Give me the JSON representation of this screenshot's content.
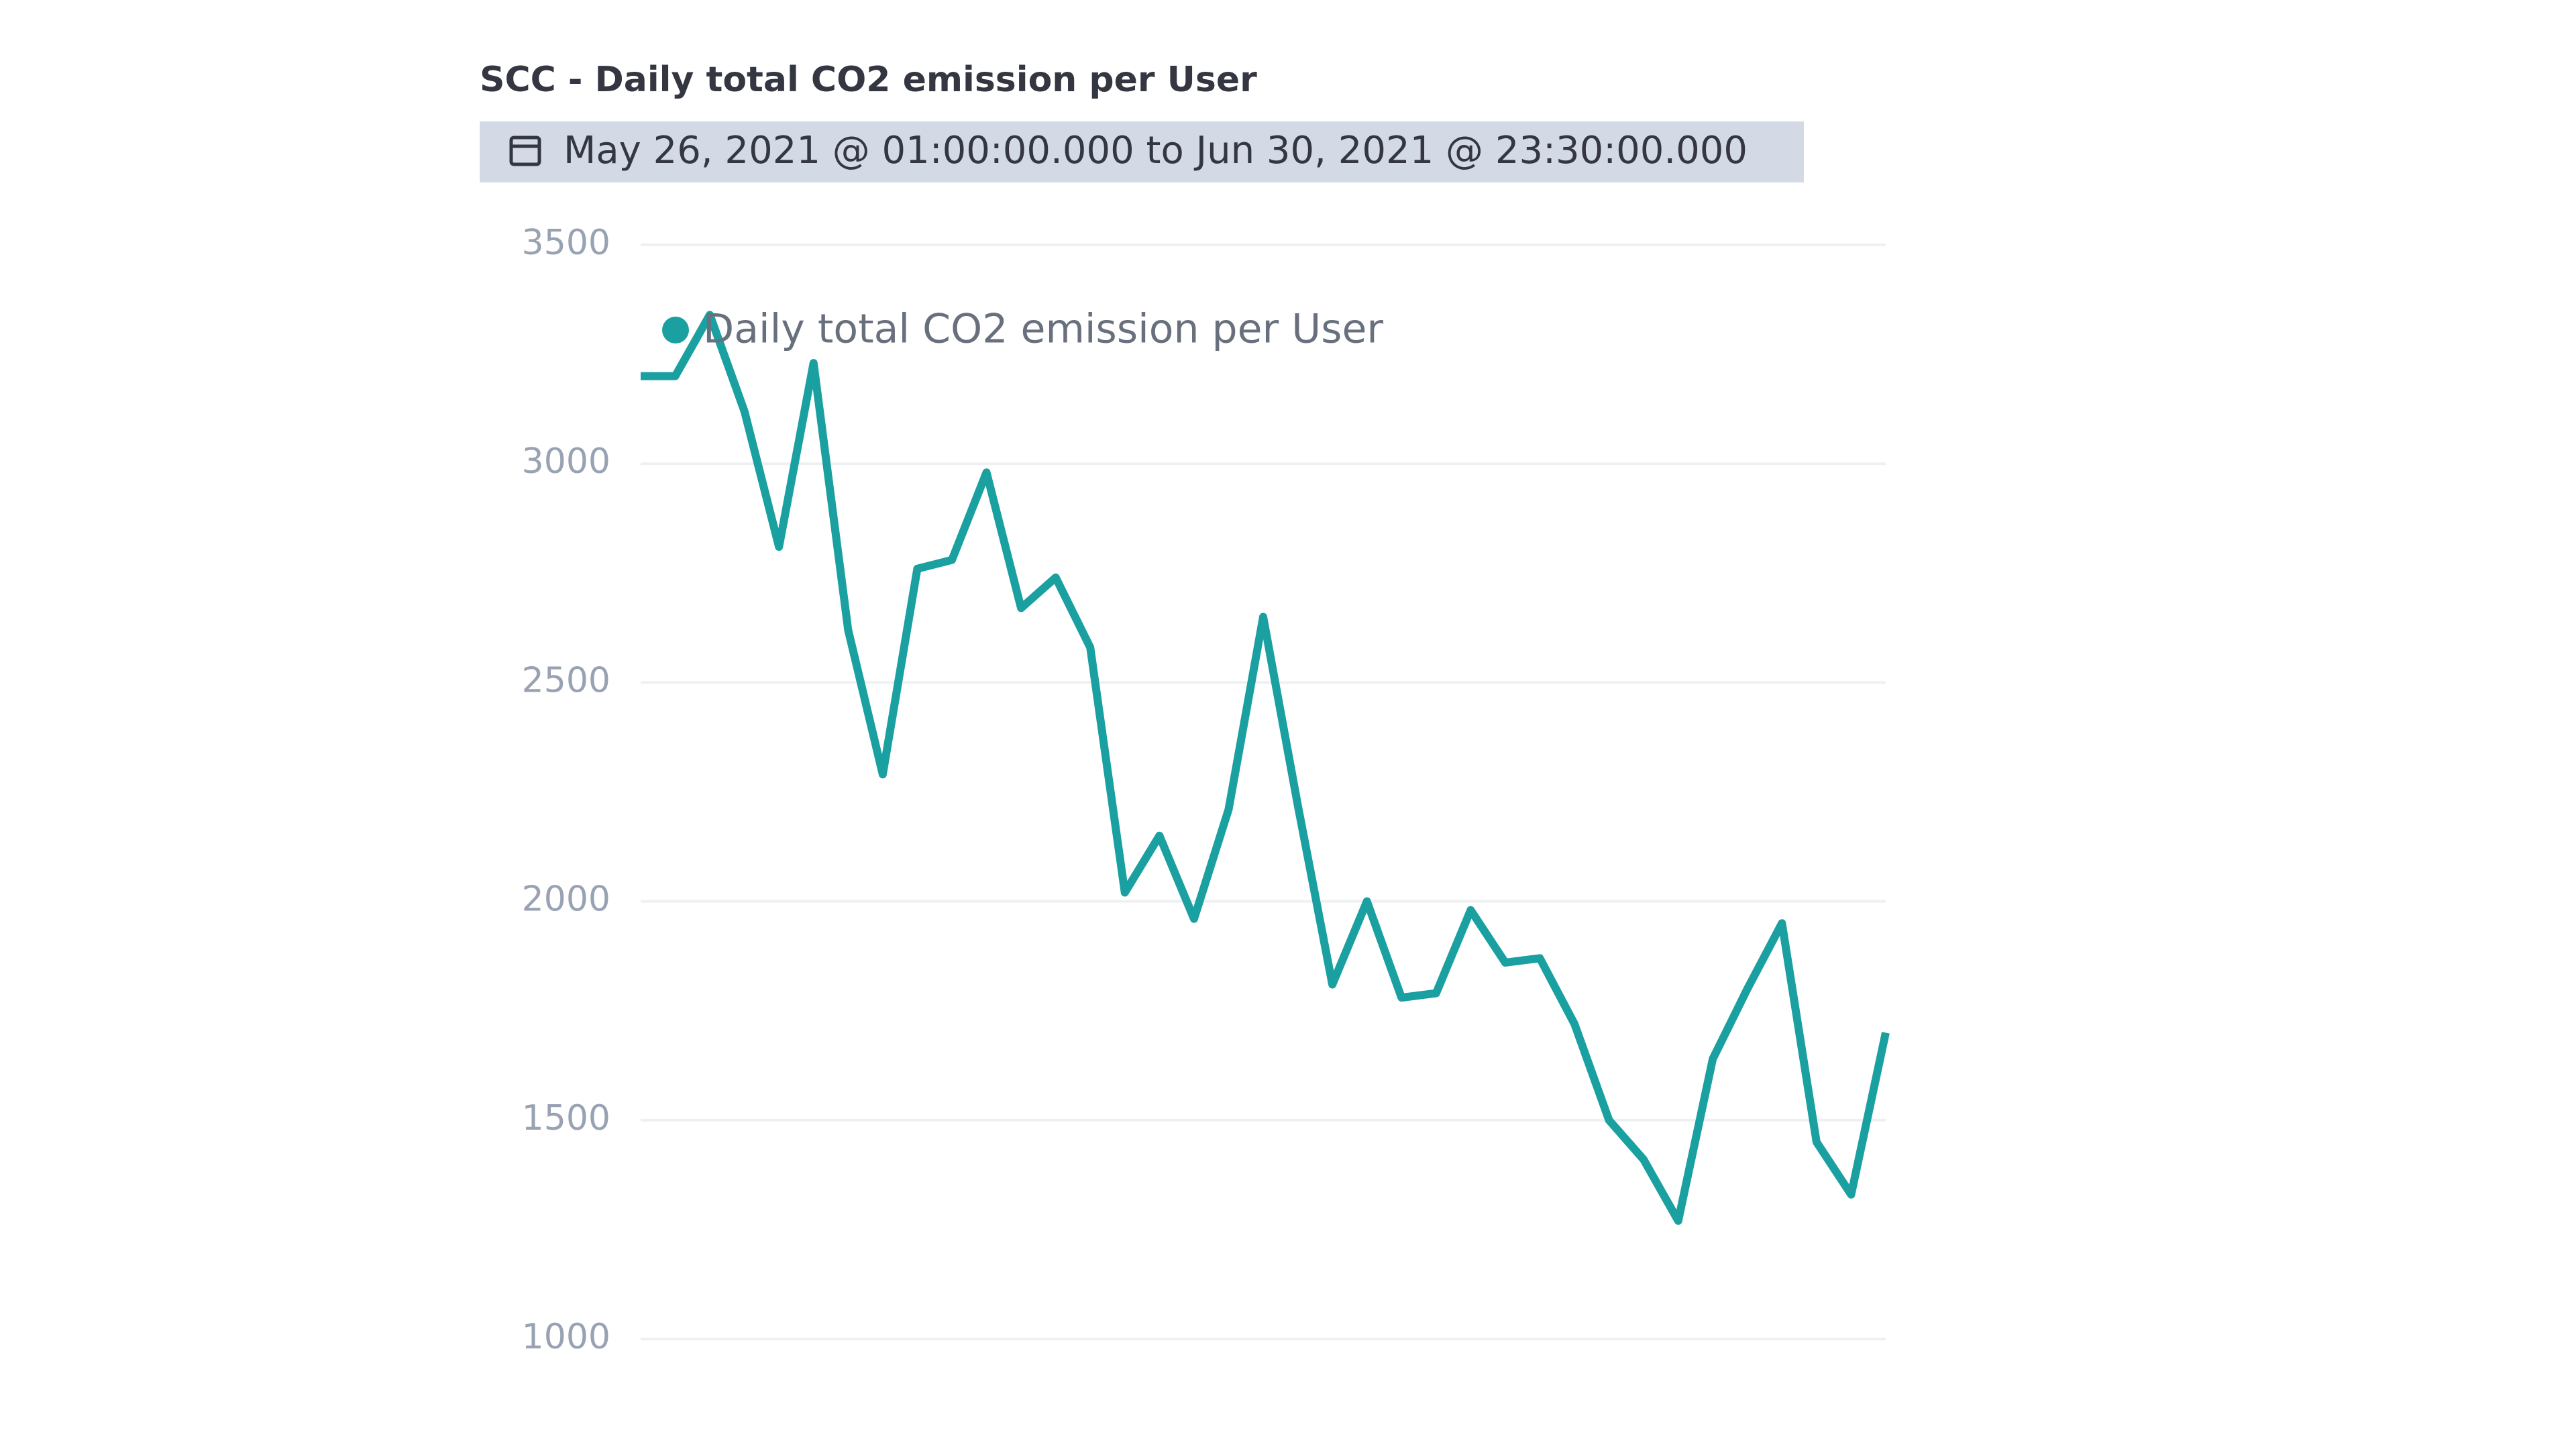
{
  "chart_data": {
    "type": "line",
    "title": "SCC - Daily total CO2 emission per User",
    "time_range": "May 26, 2021 @ 01:00:00.000 to Jun 30, 2021 @ 23:30:00.000",
    "series": [
      {
        "name": "Daily total CO2 emission per User",
        "color": "#1aa0a0",
        "values": [
          3200,
          3200,
          3340,
          3120,
          2810,
          3230,
          2620,
          2290,
          2760,
          2780,
          2980,
          2670,
          2740,
          2580,
          2020,
          2150,
          1960,
          2210,
          2650,
          2220,
          1810,
          2000,
          1780,
          1790,
          1980,
          1860,
          1870,
          1720,
          1500,
          1410,
          1270,
          1640,
          1800,
          1950,
          1450,
          1330,
          1700
        ]
      }
    ],
    "ylim": [
      1000,
      3500
    ],
    "yticks": [
      1000,
      1500,
      2000,
      2500,
      3000,
      3500
    ],
    "grid": true,
    "legend": "top-left"
  }
}
